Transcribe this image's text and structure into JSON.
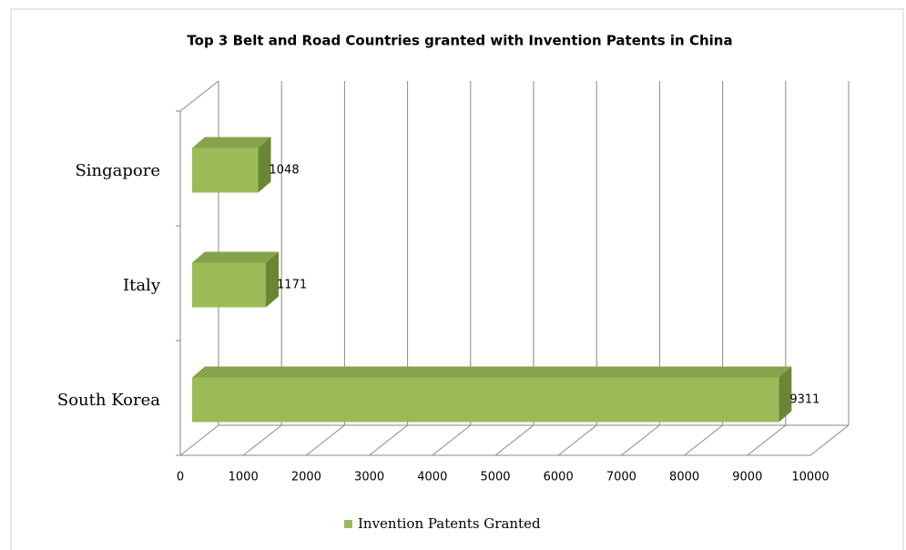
{
  "chart_data": {
    "type": "bar3d_horizontal",
    "title": "Top 3 Belt and Road Countries granted with Invention Patents in China",
    "categories": [
      "South Korea",
      "Italy",
      "Singapore"
    ],
    "series": [
      {
        "name": "Invention Patents Granted",
        "color": "#9bbb59",
        "values": [
          9311,
          1171,
          1048
        ]
      }
    ],
    "xlim": [
      0,
      10000
    ],
    "xticks": [
      0,
      1000,
      2000,
      3000,
      4000,
      5000,
      6000,
      7000,
      8000,
      9000,
      10000
    ],
    "grid": true,
    "legend": "bottom",
    "data_labels": true
  }
}
